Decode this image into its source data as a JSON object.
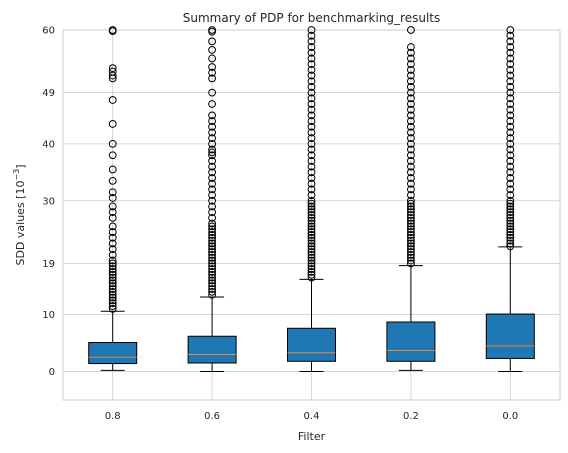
{
  "chart_data": {
    "type": "box",
    "title": "Summary of PDP for benchmarking_results",
    "xlabel": "Filter",
    "ylabel": "SDD values [10⁻³]",
    "categories": [
      "0.8",
      "0.6",
      "0.4",
      "0.2",
      "0.0"
    ],
    "yticks": [
      0,
      10,
      19,
      30,
      40,
      49,
      60
    ],
    "ylim": [
      -5,
      60
    ],
    "grid": true,
    "boxes": [
      {
        "category": "0.8",
        "whisker_low": 0.2,
        "q1": 1.4,
        "median": 2.5,
        "q3": 5.1,
        "whisker_high": 10.6,
        "outliers": [
          11,
          11.5,
          12,
          12.5,
          13,
          13.5,
          14,
          14.5,
          15,
          15.5,
          16,
          16.5,
          17,
          17.5,
          18,
          18.5,
          19,
          19.5,
          20.5,
          21.5,
          22.5,
          23.5,
          24.5,
          25.5,
          27,
          28,
          29,
          30.5,
          31.5,
          33.5,
          35.5,
          38,
          40,
          43.5,
          47.7,
          51.5,
          52,
          52.7,
          53.3,
          59.8,
          60
        ]
      },
      {
        "category": "0.6",
        "whisker_low": 0.0,
        "q1": 1.5,
        "median": 3.0,
        "q3": 6.2,
        "whisker_high": 13.1,
        "outliers": [
          13.5,
          14,
          14.5,
          15,
          15.5,
          16,
          16.5,
          17,
          17.5,
          18,
          18.5,
          19,
          19.5,
          20,
          20.5,
          21,
          21.5,
          22,
          22.5,
          23,
          23.5,
          24,
          24.5,
          25,
          25.5,
          26,
          27,
          28,
          29,
          30,
          31,
          32,
          33,
          34,
          35,
          36,
          37,
          38,
          38.5,
          39,
          40,
          41,
          42,
          43,
          44,
          45,
          47,
          49,
          51.5,
          52.5,
          53.5,
          55,
          56.5,
          58,
          59.7,
          60
        ]
      },
      {
        "category": "0.4",
        "whisker_low": 0.0,
        "q1": 1.8,
        "median": 3.3,
        "q3": 7.6,
        "whisker_high": 16.2,
        "outliers": [
          16.5,
          17,
          17.5,
          18,
          18.5,
          19,
          19.5,
          20,
          20.5,
          21,
          21.5,
          22,
          22.5,
          23,
          23.5,
          24,
          24.5,
          25,
          25.5,
          26,
          26.5,
          27,
          27.5,
          28,
          28.5,
          29,
          29.5,
          30,
          31,
          32,
          33,
          34,
          35,
          36,
          37,
          38,
          39,
          40,
          41,
          42,
          43,
          44,
          45,
          46,
          47,
          48,
          49,
          50,
          51,
          52,
          53,
          54,
          55,
          56,
          57,
          58,
          59,
          60
        ]
      },
      {
        "category": "0.2",
        "whisker_low": 0.2,
        "q1": 1.8,
        "median": 3.7,
        "q3": 8.7,
        "whisker_high": 18.6,
        "outliers": [
          19,
          19.5,
          20,
          20.5,
          21,
          21.5,
          22,
          22.5,
          23,
          23.5,
          24,
          24.5,
          25,
          25.5,
          26,
          26.5,
          27,
          27.5,
          28,
          28.5,
          29,
          29.5,
          30,
          31,
          32,
          33,
          34,
          35,
          36,
          37,
          38,
          39,
          40,
          41,
          42,
          43,
          44,
          45,
          46,
          47,
          48,
          49,
          50,
          51,
          52,
          53,
          54,
          55,
          56,
          57,
          60
        ]
      },
      {
        "category": "0.0",
        "whisker_low": 0.0,
        "q1": 2.3,
        "median": 4.5,
        "q3": 10.1,
        "whisker_high": 21.9,
        "outliers": [
          22,
          22.5,
          23,
          23.5,
          24,
          24.5,
          25,
          25.5,
          26,
          26.5,
          27,
          27.5,
          28,
          28.5,
          29,
          29.5,
          30,
          31,
          32,
          33,
          34,
          35,
          36,
          37,
          38,
          39,
          40,
          41,
          42,
          43,
          44,
          45,
          46,
          47,
          48,
          49,
          50,
          51,
          52,
          53,
          54,
          55,
          56,
          57,
          58,
          59,
          60
        ]
      }
    ],
    "colors": {
      "box_fill": "#1f77b4",
      "median": "#e08a3c",
      "grid": "#cccccc",
      "axes_edge": "#cccccc",
      "text": "#262626"
    }
  }
}
